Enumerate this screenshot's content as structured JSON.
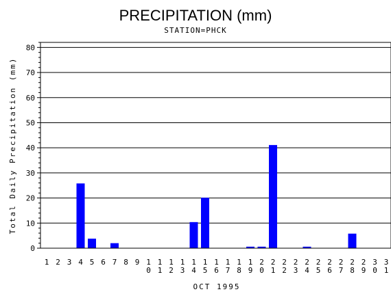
{
  "chart_data": {
    "type": "bar",
    "title": "PRECIPITATION (mm)",
    "subtitle": "STATION=PHCK",
    "xlabel": "OCT 1995",
    "ylabel": "Total Daily Precipitation (mm)",
    "ylim": [
      0,
      82
    ],
    "yticks": [
      0,
      10,
      20,
      30,
      40,
      50,
      60,
      70,
      80
    ],
    "grid": true,
    "bar_color": "#0000ff",
    "categories": [
      "1",
      "2",
      "3",
      "4",
      "5",
      "6",
      "7",
      "8",
      "9",
      "10",
      "11",
      "12",
      "13",
      "14",
      "15",
      "16",
      "17",
      "18",
      "19",
      "20",
      "21",
      "22",
      "23",
      "24",
      "25",
      "26",
      "27",
      "28",
      "29",
      "30",
      "31"
    ],
    "values": [
      0,
      0,
      0,
      25.8,
      3.8,
      0,
      2.0,
      0,
      0,
      0,
      0,
      0,
      0,
      10.4,
      20.1,
      0,
      0,
      0,
      0.6,
      0.6,
      41.1,
      0,
      0,
      0.6,
      0,
      0,
      0,
      5.8,
      0,
      0,
      0
    ]
  }
}
